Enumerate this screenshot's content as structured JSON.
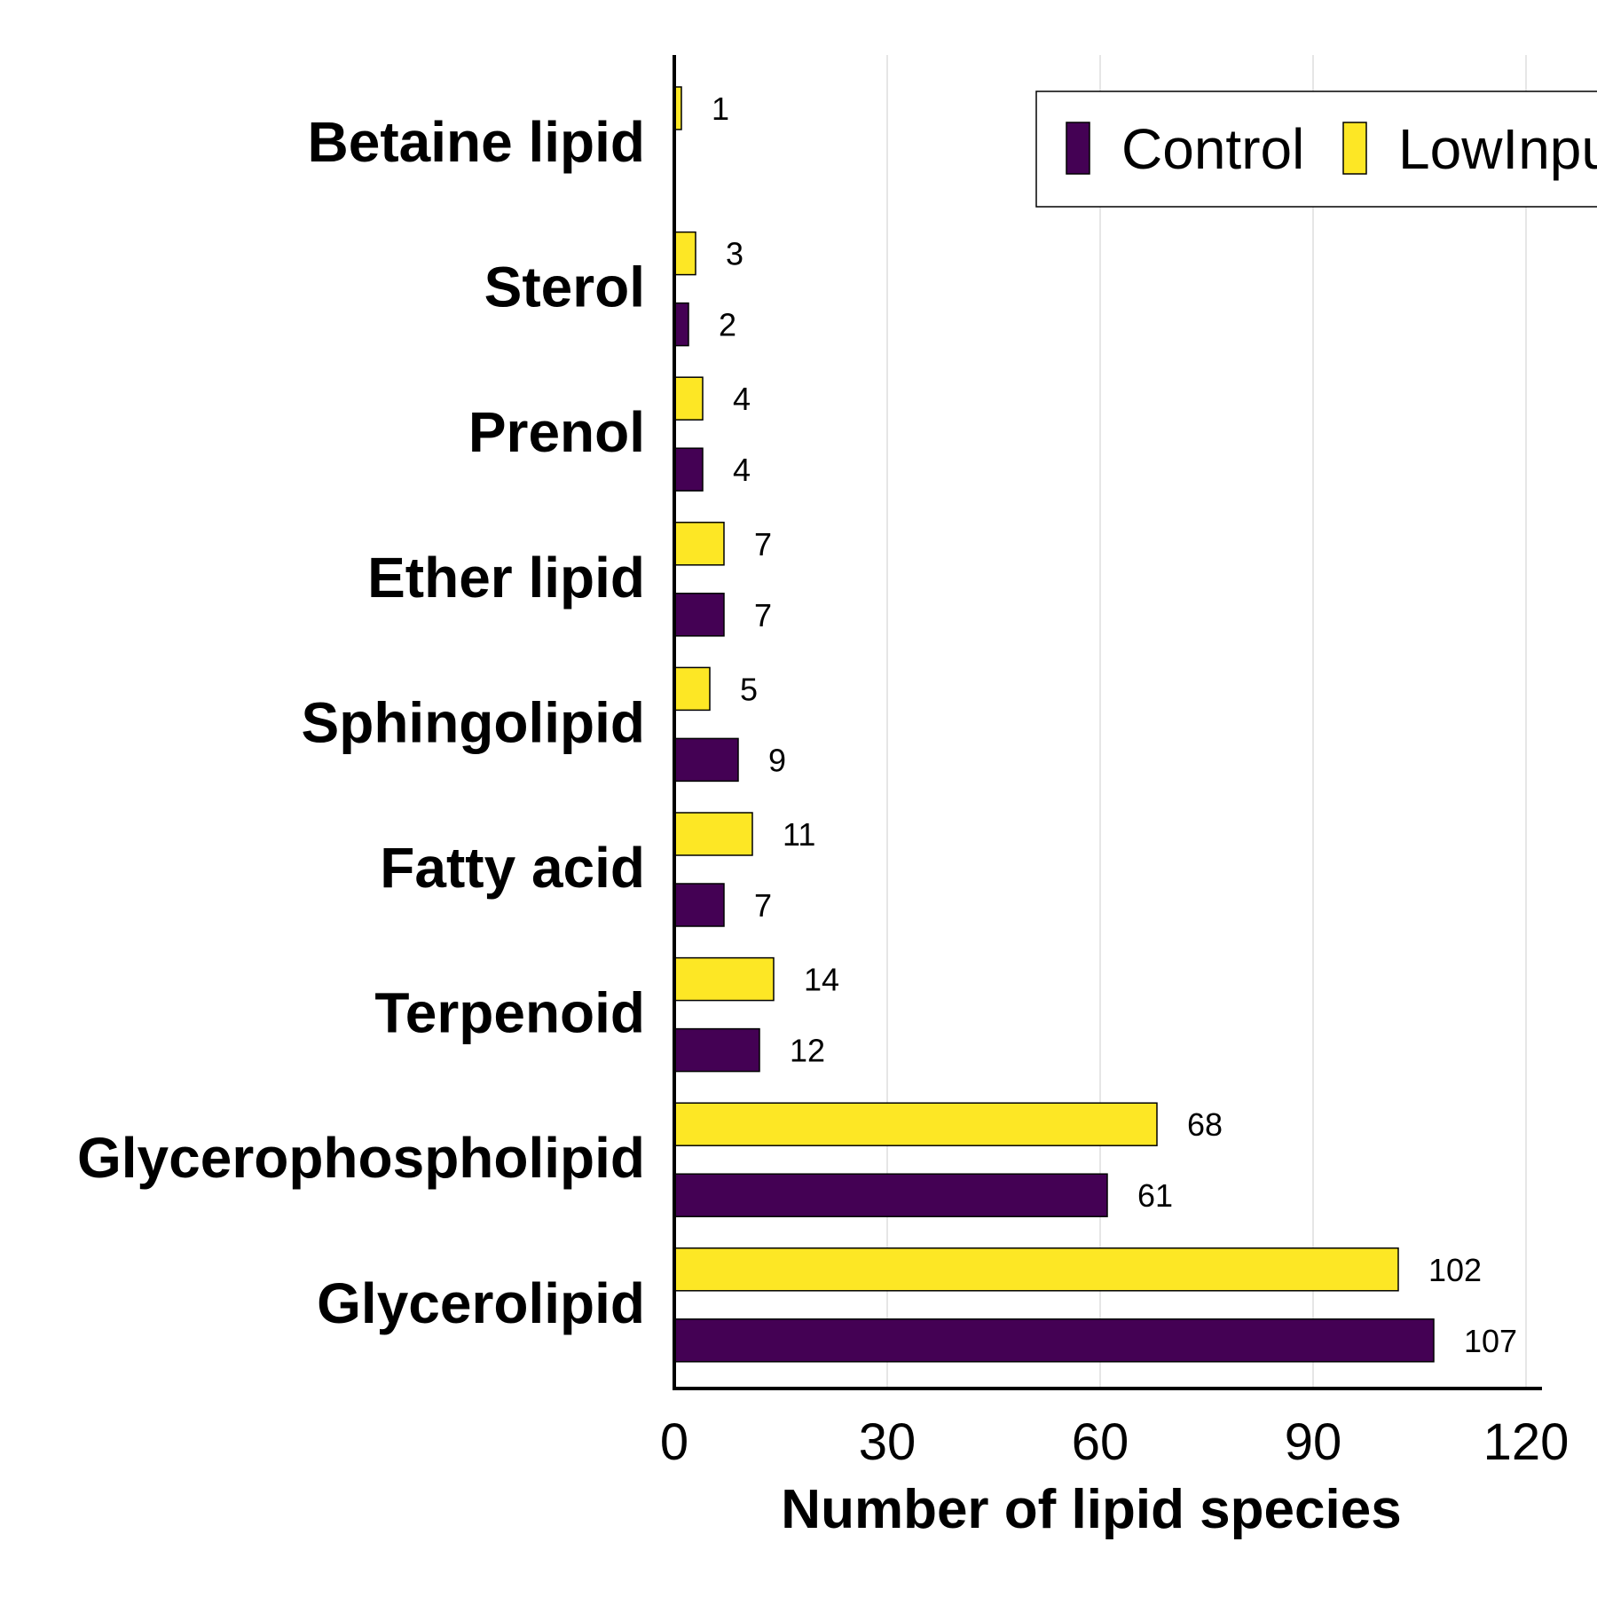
{
  "chart_data": {
    "type": "bar",
    "orientation": "horizontal",
    "categories": [
      "Betaine lipid",
      "Sterol",
      "Prenol",
      "Ether lipid",
      "Sphingolipid",
      "Fatty acid",
      "Terpenoid",
      "Glycerophospholipid",
      "Glycerolipid"
    ],
    "series": [
      {
        "name": "Control",
        "color": "#440154",
        "values": [
          null,
          2,
          4,
          7,
          9,
          7,
          12,
          61,
          107
        ]
      },
      {
        "name": "LowInput",
        "color": "#fde725",
        "values": [
          1,
          3,
          4,
          7,
          5,
          11,
          14,
          68,
          102
        ]
      }
    ],
    "data_labels": {
      "Control": [
        "",
        "2",
        "4",
        "7",
        "9",
        "7",
        "12",
        "61",
        "107"
      ],
      "LowInput": [
        "1",
        "3",
        "4",
        "7",
        "5",
        "11",
        "14",
        "68",
        "102"
      ]
    },
    "title": "",
    "xlabel": "Number of lipid species",
    "ylabel": "",
    "xlim": [
      0,
      120
    ],
    "xticks": [
      0,
      30,
      60,
      90,
      120
    ],
    "xtick_labels": [
      "0",
      "30",
      "60",
      "90",
      "120"
    ],
    "grid": "vertical",
    "legend": {
      "position": "top-right",
      "entries": [
        "Control",
        "LowInput"
      ]
    }
  }
}
